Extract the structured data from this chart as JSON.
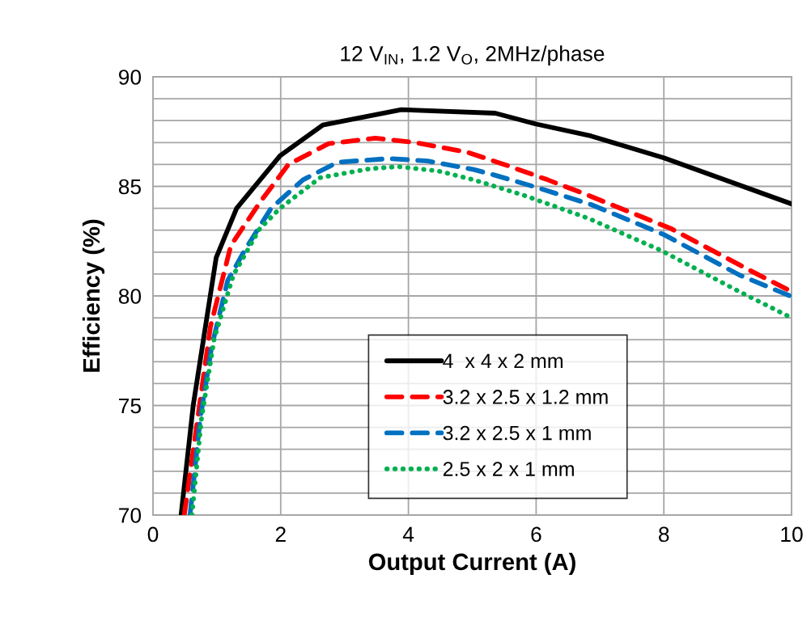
{
  "chart_data": {
    "type": "line",
    "title": "12 V$_{IN}$, 1.2 V$_{O}$, 2MHz/phase",
    "xlabel": "Output Current (A)",
    "ylabel": "Efficiency (%)",
    "xlim": [
      0,
      10
    ],
    "xticks": [
      0,
      2,
      4,
      6,
      8,
      10
    ],
    "ylim": [
      70,
      90
    ],
    "yticks": [
      70,
      {
        "value": 71,
        "label": null
      },
      {
        "value": 72,
        "label": null
      },
      {
        "value": 73,
        "label": null
      },
      {
        "value": 74,
        "label": null
      },
      75,
      {
        "value": 76,
        "label": null
      },
      {
        "value": 77,
        "label": null
      },
      {
        "value": 78,
        "label": null
      },
      {
        "value": 79,
        "label": null
      },
      80,
      {
        "value": 81,
        "label": null
      },
      {
        "value": 82,
        "label": null
      },
      {
        "value": 83,
        "label": null
      },
      {
        "value": 84,
        "label": null
      },
      85,
      {
        "value": 86,
        "label": null
      },
      {
        "value": 87,
        "label": null
      },
      {
        "value": 88,
        "label": null
      },
      {
        "value": 89,
        "label": null
      },
      90
    ],
    "grid": true,
    "legend": "bottom",
    "marker": "none",
    "series": [
      {
        "name": "4  x 4 x 2 mm",
        "color": "#000000",
        "line_style": "solid",
        "x": [
          0.44,
          0.63,
          0.99,
          1.31,
          1.99,
          2.66,
          3.89,
          5.36,
          5.99,
          6.86,
          8.0,
          10
        ],
        "values": [
          70,
          75.0,
          81.75,
          84.0,
          86.4,
          87.8,
          88.5,
          88.34,
          87.85,
          87.3,
          86.3,
          84.2
        ]
      },
      {
        "name": "3.2 x 2.5 x 1.2 mm",
        "color": "#ff0000",
        "line_style": "dashed",
        "x": [
          0.49,
          0.7,
          0.9,
          1.22,
          1.67,
          2.12,
          2.75,
          3.48,
          4.11,
          4.93,
          5.5,
          6.18,
          6.81,
          8.12,
          9.39,
          10
        ],
        "values": [
          70,
          74.4,
          78.6,
          82.3,
          84.25,
          86.0,
          86.95,
          87.2,
          87.0,
          86.55,
          86.0,
          85.3,
          84.6,
          83.06,
          81.1,
          80.2
        ]
      },
      {
        "name": "3.2 x 2.5 x 1 mm",
        "color": "#0070c0",
        "line_style": "dashed",
        "x": [
          0.58,
          0.74,
          0.92,
          1.17,
          1.44,
          1.85,
          2.35,
          2.89,
          3.7,
          4.3,
          5.02,
          5.33,
          6.0,
          6.86,
          8.0,
          9.18,
          10
        ],
        "values": [
          70,
          74.4,
          77.7,
          80.7,
          82.1,
          84.0,
          85.3,
          86.1,
          86.27,
          86.16,
          85.77,
          85.53,
          84.96,
          84.17,
          82.8,
          80.96,
          79.97
        ]
      },
      {
        "name": "2.5 x 2 x 1 mm",
        "color": "#00b050",
        "line_style": "dotted",
        "x": [
          0.61,
          0.76,
          0.96,
          1.26,
          1.67,
          1.99,
          2.62,
          3.39,
          3.84,
          4.47,
          5.02,
          5.8,
          6.81,
          7.96,
          9.18,
          10
        ],
        "values": [
          70,
          74.4,
          78.06,
          80.96,
          83.06,
          84.0,
          85.4,
          85.8,
          85.9,
          85.7,
          85.3,
          84.6,
          83.55,
          82.07,
          80.2,
          79.0
        ]
      }
    ]
  }
}
